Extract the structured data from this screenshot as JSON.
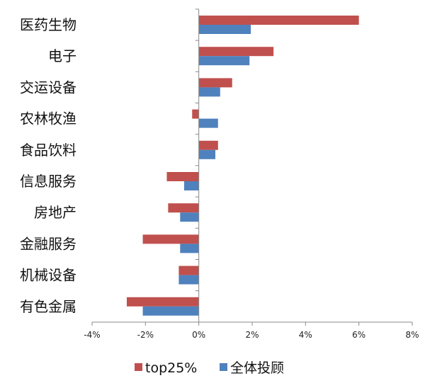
{
  "chart_data": {
    "type": "bar",
    "orientation": "horizontal",
    "categories": [
      "医药生物",
      "电子",
      "交运设备",
      "农林牧渔",
      "食品饮料",
      "信息服务",
      "房地产",
      "金融服务",
      "机械设备",
      "有色金属"
    ],
    "series": [
      {
        "name": "top25%",
        "color": "#C0504D",
        "values": [
          6.0,
          2.8,
          1.25,
          -0.25,
          0.72,
          -1.2,
          -1.15,
          -2.1,
          -0.75,
          -2.7
        ]
      },
      {
        "name": "全体投顾",
        "color": "#4F81BD",
        "values": [
          1.95,
          1.9,
          0.8,
          0.72,
          0.62,
          -0.55,
          -0.7,
          -0.7,
          -0.75,
          -2.1
        ]
      }
    ],
    "xlim": [
      -4,
      8
    ],
    "xticks": [
      -4,
      -2,
      0,
      2,
      4,
      6,
      8
    ],
    "xtick_labels": [
      "-4%",
      "-2%",
      "0%",
      "2%",
      "4%",
      "6%",
      "8%"
    ],
    "legend_position": "bottom",
    "grid": false
  }
}
